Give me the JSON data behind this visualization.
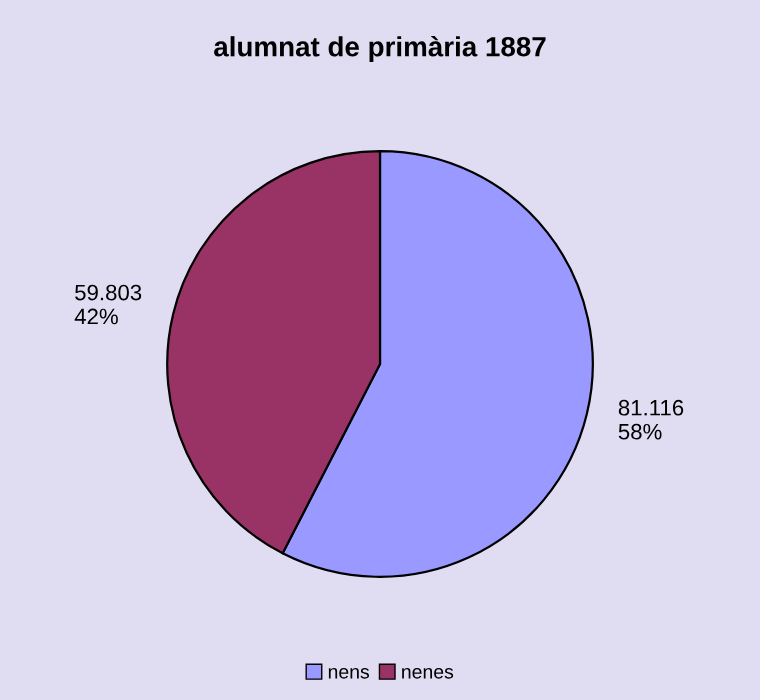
{
  "chart_data": {
    "type": "pie",
    "title": "alumnat de primària 1887",
    "categories": [
      "nens",
      "nenes"
    ],
    "values": [
      81.116,
      59.803
    ],
    "colors": [
      "#9999ff",
      "#993366"
    ],
    "value_labels": [
      "81.116\n58%",
      "59.803\n42%"
    ],
    "legend": "bottom"
  }
}
